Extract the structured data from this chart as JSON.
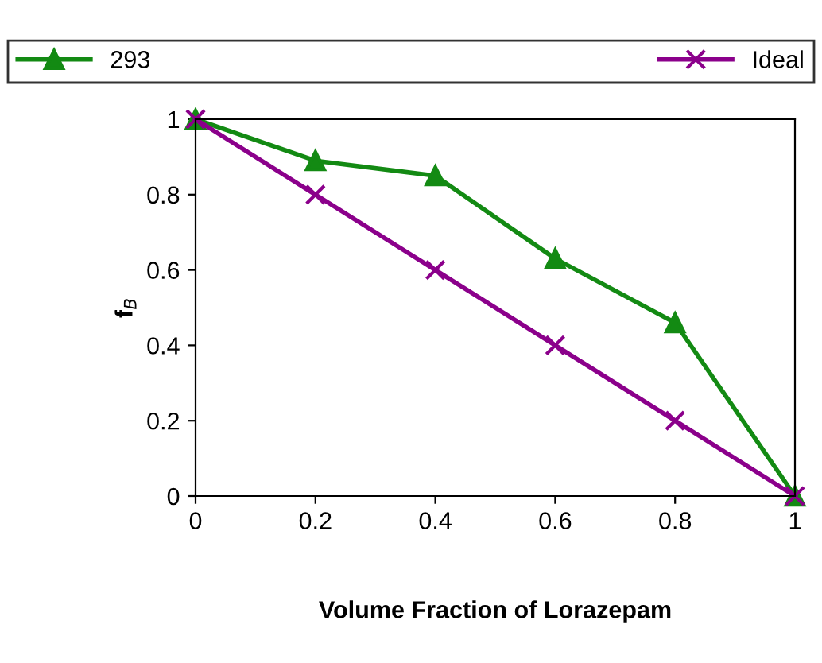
{
  "chart_data": {
    "type": "line",
    "xlabel": "Volume Fraction of Lorazepam",
    "ylabel": "f$_{B}$",
    "x": [
      0,
      0.2,
      0.4,
      0.6,
      0.8,
      1
    ],
    "series": [
      {
        "name": "293",
        "color": "#138a13",
        "marker": "triangle",
        "values": [
          1,
          0.89,
          0.85,
          0.63,
          0.46,
          0
        ]
      },
      {
        "name": "Ideal",
        "color": "#8b008b",
        "marker": "cross",
        "values": [
          1,
          0.8,
          0.6,
          0.4,
          0.2,
          0
        ]
      }
    ],
    "xlim": [
      0,
      1
    ],
    "ylim": [
      0,
      1
    ],
    "xticks": [
      0,
      0.2,
      0.4,
      0.6,
      0.8,
      1
    ],
    "yticks": [
      0,
      0.2,
      0.4,
      0.6,
      0.8,
      1
    ],
    "grid": false,
    "legend": "top",
    "line_style": "solid"
  }
}
